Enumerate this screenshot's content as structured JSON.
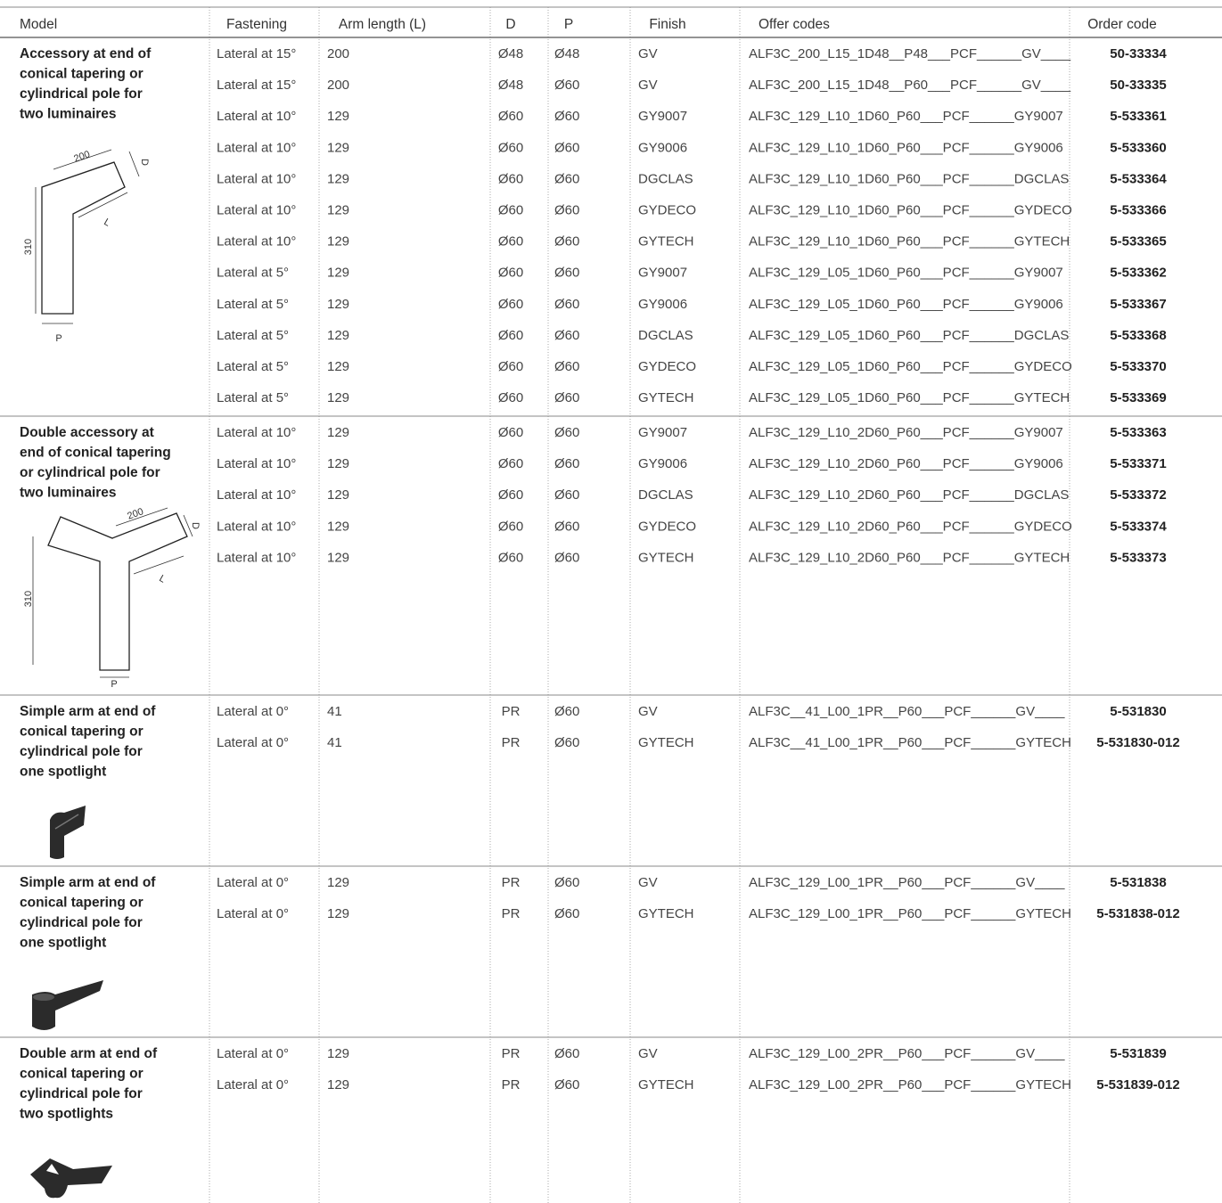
{
  "table": {
    "header": [
      "Model",
      "Fastening",
      "Arm length (L)",
      "D",
      "P",
      "Finish",
      "Offer codes",
      "Order code"
    ],
    "groups": [
      {
        "model": [
          "Accessory at end of",
          "conical tapering or",
          "cylindrical pole for",
          "two luminaires"
        ],
        "diagram_labels": [
          "200",
          "D",
          "L",
          "310",
          "P"
        ],
        "rows": [
          [
            "Lateral at 15°",
            "200",
            "Ø48",
            "Ø48",
            "GV",
            "ALF3C_200_L15_1D48__P48___PCF______GV____",
            "50-33334"
          ],
          [
            "Lateral at 15°",
            "200",
            "Ø48",
            "Ø60",
            "GV",
            "ALF3C_200_L15_1D48__P60___PCF______GV____",
            "50-33335"
          ],
          [
            "Lateral at 10°",
            "129",
            "Ø60",
            "Ø60",
            "GY9007",
            "ALF3C_129_L10_1D60_P60___PCF______GY9007",
            "5-533361"
          ],
          [
            "Lateral at 10°",
            "129",
            "Ø60",
            "Ø60",
            "GY9006",
            "ALF3C_129_L10_1D60_P60___PCF______GY9006",
            "5-533360"
          ],
          [
            "Lateral at 10°",
            "129",
            "Ø60",
            "Ø60",
            "DGCLAS",
            "ALF3C_129_L10_1D60_P60___PCF______DGCLAS",
            "5-533364"
          ],
          [
            "Lateral at 10°",
            "129",
            "Ø60",
            "Ø60",
            "GYDECO",
            "ALF3C_129_L10_1D60_P60___PCF______GYDECO",
            "5-533366"
          ],
          [
            "Lateral at 10°",
            "129",
            "Ø60",
            "Ø60",
            "GYTECH",
            "ALF3C_129_L10_1D60_P60___PCF______GYTECH",
            "5-533365"
          ],
          [
            "Lateral at 5°",
            "129",
            "Ø60",
            "Ø60",
            "GY9007",
            "ALF3C_129_L05_1D60_P60___PCF______GY9007",
            "5-533362"
          ],
          [
            "Lateral at 5°",
            "129",
            "Ø60",
            "Ø60",
            "GY9006",
            "ALF3C_129_L05_1D60_P60___PCF______GY9006",
            "5-533367"
          ],
          [
            "Lateral at 5°",
            "129",
            "Ø60",
            "Ø60",
            "DGCLAS",
            "ALF3C_129_L05_1D60_P60___PCF______DGCLAS",
            "5-533368"
          ],
          [
            "Lateral at 5°",
            "129",
            "Ø60",
            "Ø60",
            "GYDECO",
            "ALF3C_129_L05_1D60_P60___PCF______GYDECO",
            "5-533370"
          ],
          [
            "Lateral at 5°",
            "129",
            "Ø60",
            "Ø60",
            "GYTECH",
            "ALF3C_129_L05_1D60_P60___PCF______GYTECH",
            "5-533369"
          ]
        ]
      },
      {
        "model": [
          "Double accessory at",
          "end of conical tapering",
          "or cylindrical pole for",
          "two luminaires"
        ],
        "diagram_labels": [
          "200",
          "D",
          "L",
          "310",
          "P"
        ],
        "rows": [
          [
            "Lateral at 10°",
            "129",
            "Ø60",
            "Ø60",
            "GY9007",
            "ALF3C_129_L10_2D60_P60___PCF______GY9007",
            "5-533363"
          ],
          [
            "Lateral at 10°",
            "129",
            "Ø60",
            "Ø60",
            "GY9006",
            "ALF3C_129_L10_2D60_P60___PCF______GY9006",
            "5-533371"
          ],
          [
            "Lateral at 10°",
            "129",
            "Ø60",
            "Ø60",
            "DGCLAS",
            "ALF3C_129_L10_2D60_P60___PCF______DGCLAS",
            "5-533372"
          ],
          [
            "Lateral at 10°",
            "129",
            "Ø60",
            "Ø60",
            "GYDECO",
            "ALF3C_129_L10_2D60_P60___PCF______GYDECO",
            "5-533374"
          ],
          [
            "Lateral at 10°",
            "129",
            "Ø60",
            "Ø60",
            "GYTECH",
            "ALF3C_129_L10_2D60_P60___PCF______GYTECH",
            "5-533373"
          ]
        ]
      },
      {
        "model": [
          "Simple arm at end of",
          "conical tapering or",
          "cylindrical pole for",
          "one spotlight"
        ],
        "rows": [
          [
            "Lateral at 0°",
            "41",
            "PR",
            "Ø60",
            "GV",
            "ALF3C__41_L00_1PR__P60___PCF______GV____",
            "5-531830"
          ],
          [
            "Lateral at 0°",
            "41",
            "PR",
            "Ø60",
            "GYTECH",
            "ALF3C__41_L00_1PR__P60___PCF______GYTECH",
            "5-531830-012"
          ]
        ]
      },
      {
        "model": [
          "Simple arm at end of",
          "conical tapering or",
          "cylindrical pole for",
          "one spotlight"
        ],
        "rows": [
          [
            "Lateral at 0°",
            "129",
            "PR",
            "Ø60",
            "GV",
            "ALF3C_129_L00_1PR__P60___PCF______GV____",
            "5-531838"
          ],
          [
            "Lateral at 0°",
            "129",
            "PR",
            "Ø60",
            "GYTECH",
            "ALF3C_129_L00_1PR__P60___PCF______GYTECH",
            "5-531838-012"
          ]
        ]
      },
      {
        "model": [
          "Double arm at end of",
          "conical tapering or",
          "cylindrical pole for",
          "two spotlights"
        ],
        "rows": [
          [
            "Lateral at 0°",
            "129",
            "PR",
            "Ø60",
            "GV",
            "ALF3C_129_L00_2PR__P60___PCF______GV____",
            "5-531839"
          ],
          [
            "Lateral at 0°",
            "129",
            "PR",
            "Ø60",
            "GYTECH",
            "ALF3C_129_L00_2PR__P60___PCF______GYTECH",
            "5-531839-012"
          ]
        ]
      }
    ]
  }
}
